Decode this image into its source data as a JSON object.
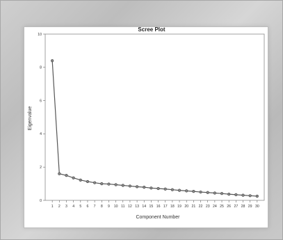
{
  "chart_data": {
    "type": "line",
    "title": "Scree Plot",
    "xlabel": "Component Number",
    "ylabel": "Eigenvalue",
    "x": [
      1,
      2,
      3,
      4,
      5,
      6,
      7,
      8,
      9,
      10,
      11,
      12,
      13,
      14,
      15,
      16,
      17,
      18,
      19,
      20,
      21,
      22,
      23,
      24,
      25,
      26,
      27,
      28,
      29,
      30
    ],
    "values": [
      8.4,
      1.6,
      1.5,
      1.35,
      1.22,
      1.13,
      1.06,
      1.0,
      0.98,
      0.94,
      0.9,
      0.86,
      0.82,
      0.79,
      0.74,
      0.71,
      0.68,
      0.64,
      0.6,
      0.57,
      0.54,
      0.5,
      0.47,
      0.44,
      0.41,
      0.37,
      0.34,
      0.31,
      0.28,
      0.25
    ],
    "xlim": [
      0,
      31
    ],
    "ylim": [
      0,
      10
    ],
    "yticks": [
      0,
      2,
      4,
      6,
      8,
      10
    ],
    "xticks": [
      1,
      2,
      3,
      4,
      5,
      6,
      7,
      8,
      9,
      10,
      11,
      12,
      13,
      14,
      15,
      16,
      17,
      18,
      19,
      20,
      21,
      22,
      23,
      24,
      25,
      26,
      27,
      28,
      29,
      30
    ],
    "line_color": "#555555",
    "marker_color": "#888888",
    "grid": false,
    "legend": "none"
  }
}
